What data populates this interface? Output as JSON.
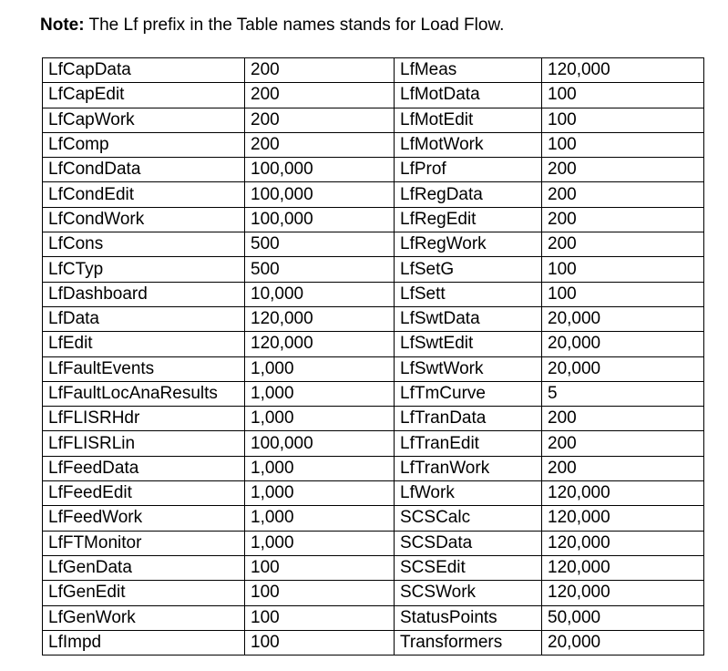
{
  "note": {
    "label": "Note:",
    "text": " The Lf prefix in the Table names stands for Load Flow."
  },
  "table": {
    "rows": [
      [
        "LfCapData",
        "200",
        "LfMeas",
        "120,000"
      ],
      [
        "LfCapEdit",
        "200",
        "LfMotData",
        "100"
      ],
      [
        "LfCapWork",
        "200",
        "LfMotEdit",
        "100"
      ],
      [
        "LfComp",
        "200",
        "LfMotWork",
        "100"
      ],
      [
        "LfCondData",
        "100,000",
        "LfProf",
        "200"
      ],
      [
        "LfCondEdit",
        "100,000",
        "LfRegData",
        "200"
      ],
      [
        "LfCondWork",
        "100,000",
        "LfRegEdit",
        "200"
      ],
      [
        "LfCons",
        "500",
        "LfRegWork",
        "200"
      ],
      [
        "LfCTyp",
        "500",
        "LfSetG",
        "100"
      ],
      [
        "LfDashboard",
        "10,000",
        "LfSett",
        "100"
      ],
      [
        "LfData",
        "120,000",
        "LfSwtData",
        "20,000"
      ],
      [
        "LfEdit",
        "120,000",
        "LfSwtEdit",
        "20,000"
      ],
      [
        "LfFaultEvents",
        "1,000",
        "LfSwtWork",
        "20,000"
      ],
      [
        "LfFaultLocAnaResults",
        "1,000",
        "LfTmCurve",
        "5"
      ],
      [
        "LfFLISRHdr",
        "1,000",
        "LfTranData",
        "200"
      ],
      [
        "LfFLISRLin",
        "100,000",
        "LfTranEdit",
        "200"
      ],
      [
        "LfFeedData",
        "1,000",
        "LfTranWork",
        "200"
      ],
      [
        "LfFeedEdit",
        "1,000",
        "LfWork",
        "120,000"
      ],
      [
        "LfFeedWork",
        "1,000",
        "SCSCalc",
        "120,000"
      ],
      [
        "LfFTMonitor",
        "1,000",
        "SCSData",
        "120,000"
      ],
      [
        "LfGenData",
        "100",
        "SCSEdit",
        "120,000"
      ],
      [
        "LfGenEdit",
        "100",
        "SCSWork",
        "120,000"
      ],
      [
        "LfGenWork",
        "100",
        "StatusPoints",
        "50,000"
      ],
      [
        "LfImpd",
        "100",
        "Transformers",
        "20,000"
      ]
    ]
  }
}
